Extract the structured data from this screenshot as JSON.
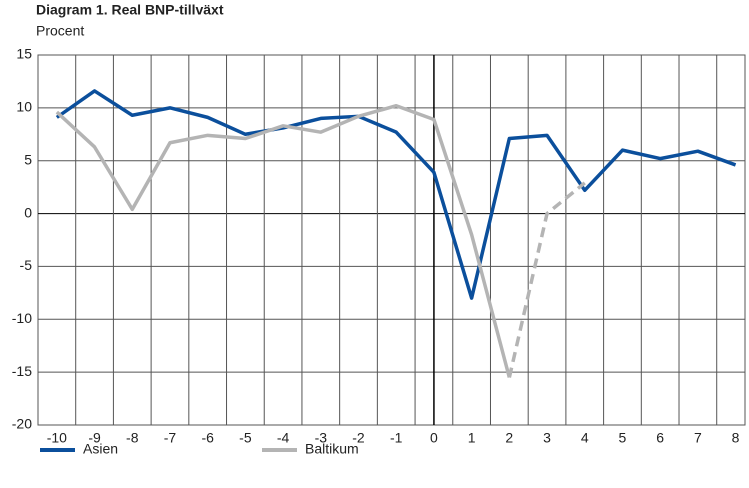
{
  "chart_data": {
    "type": "line",
    "title": "Diagram 1. Real BNP-tillväxt",
    "subtitle": "Procent",
    "x": [
      -10,
      -9,
      -8,
      -7,
      -6,
      -5,
      -4,
      -3,
      -2,
      -1,
      0,
      1,
      2,
      3,
      4,
      5,
      6,
      7,
      8
    ],
    "series": [
      {
        "name": "Asien",
        "color": "#0b4f9c",
        "values": [
          9.1,
          11.6,
          9.3,
          10,
          9.1,
          7.5,
          8.1,
          9,
          9.2,
          7.7,
          3.9,
          -8,
          7.1,
          7.4,
          2.2,
          6,
          5.2,
          5.9,
          4.6
        ]
      },
      {
        "name": "Baltikum",
        "color": "#b4b4b4",
        "dashed_from_x": 2,
        "values": [
          9.6,
          6.3,
          0.4,
          6.7,
          7.4,
          7.1,
          8.3,
          7.7,
          9.2,
          10.2,
          8.9,
          -2,
          -15.5,
          0,
          2.9,
          null,
          null,
          null,
          null
        ]
      }
    ],
    "xlim": [
      -10.5,
      8.25
    ],
    "xticks": [
      -10,
      -9,
      -8,
      -7,
      -6,
      -5,
      -4,
      -3,
      -2,
      -1,
      0,
      1,
      2,
      3,
      4,
      5,
      6,
      7,
      8
    ],
    "ylim": [
      -20,
      15
    ],
    "yticks": [
      -20,
      -15,
      -10,
      -5,
      0,
      5,
      10,
      15
    ],
    "grid": true,
    "legend": "bottom"
  }
}
